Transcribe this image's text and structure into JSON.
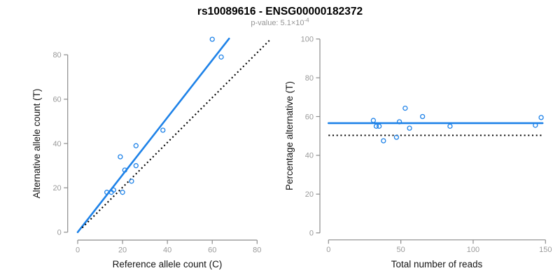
{
  "header": {
    "title": "rs10089616 - ENSG00000182372",
    "p_value_label": "p-value: 5.1×10",
    "p_value_exponent": "-4"
  },
  "colors": {
    "accent_blue": "#1e82e8",
    "axis_gray": "#8c8c8c",
    "tick_label_gray": "#9a9a9a",
    "dotted_line_black": "#000000"
  },
  "chart_data": [
    {
      "type": "scatter",
      "panel": "left",
      "xlabel": "Reference allele count (C)",
      "ylabel": "Alternative allele count (T)",
      "xlim": [
        0,
        80
      ],
      "ylim": [
        0,
        80
      ],
      "xticks": [
        0,
        20,
        40,
        60,
        80
      ],
      "yticks": [
        0,
        20,
        40,
        60,
        80
      ],
      "grid": false,
      "points": [
        [
          13,
          18
        ],
        [
          15,
          18
        ],
        [
          16,
          19
        ],
        [
          20,
          18
        ],
        [
          19,
          34
        ],
        [
          21,
          28
        ],
        [
          24,
          23
        ],
        [
          26,
          30
        ],
        [
          26,
          39
        ],
        [
          38,
          46
        ],
        [
          60,
          87
        ],
        [
          64,
          79
        ]
      ],
      "lines": [
        {
          "name": "regression-line",
          "style": "solid",
          "x1": 0,
          "y1": 0,
          "x2": 67.5,
          "y2": 87.3
        },
        {
          "name": "identity-line",
          "style": "dotted",
          "x1": 2,
          "y1": 2,
          "x2": 85.5,
          "y2": 86.5
        }
      ]
    },
    {
      "type": "scatter",
      "panel": "right",
      "xlabel": "Total number of reads",
      "ylabel": "Percentage alternative (T)",
      "xlim": [
        0,
        150
      ],
      "ylim": [
        0,
        100
      ],
      "xticks": [
        0,
        50,
        100,
        150
      ],
      "yticks": [
        0,
        20,
        40,
        60,
        80,
        100
      ],
      "grid": false,
      "points": [
        [
          31,
          58
        ],
        [
          33,
          55
        ],
        [
          35,
          55
        ],
        [
          38,
          47.5
        ],
        [
          47,
          49.3
        ],
        [
          49,
          57.3
        ],
        [
          53,
          64.3
        ],
        [
          56,
          54
        ],
        [
          65,
          60
        ],
        [
          84,
          55
        ],
        [
          143,
          55.5
        ],
        [
          147,
          59.5
        ]
      ],
      "lines": [
        {
          "name": "mean-percentage-line",
          "style": "solid",
          "x1": 0,
          "y1": 56.6,
          "x2": 148,
          "y2": 56.6
        },
        {
          "name": "fifty-percent-line",
          "style": "dotted",
          "x1": 0,
          "y1": 50.3,
          "x2": 148,
          "y2": 50.3
        }
      ]
    }
  ]
}
